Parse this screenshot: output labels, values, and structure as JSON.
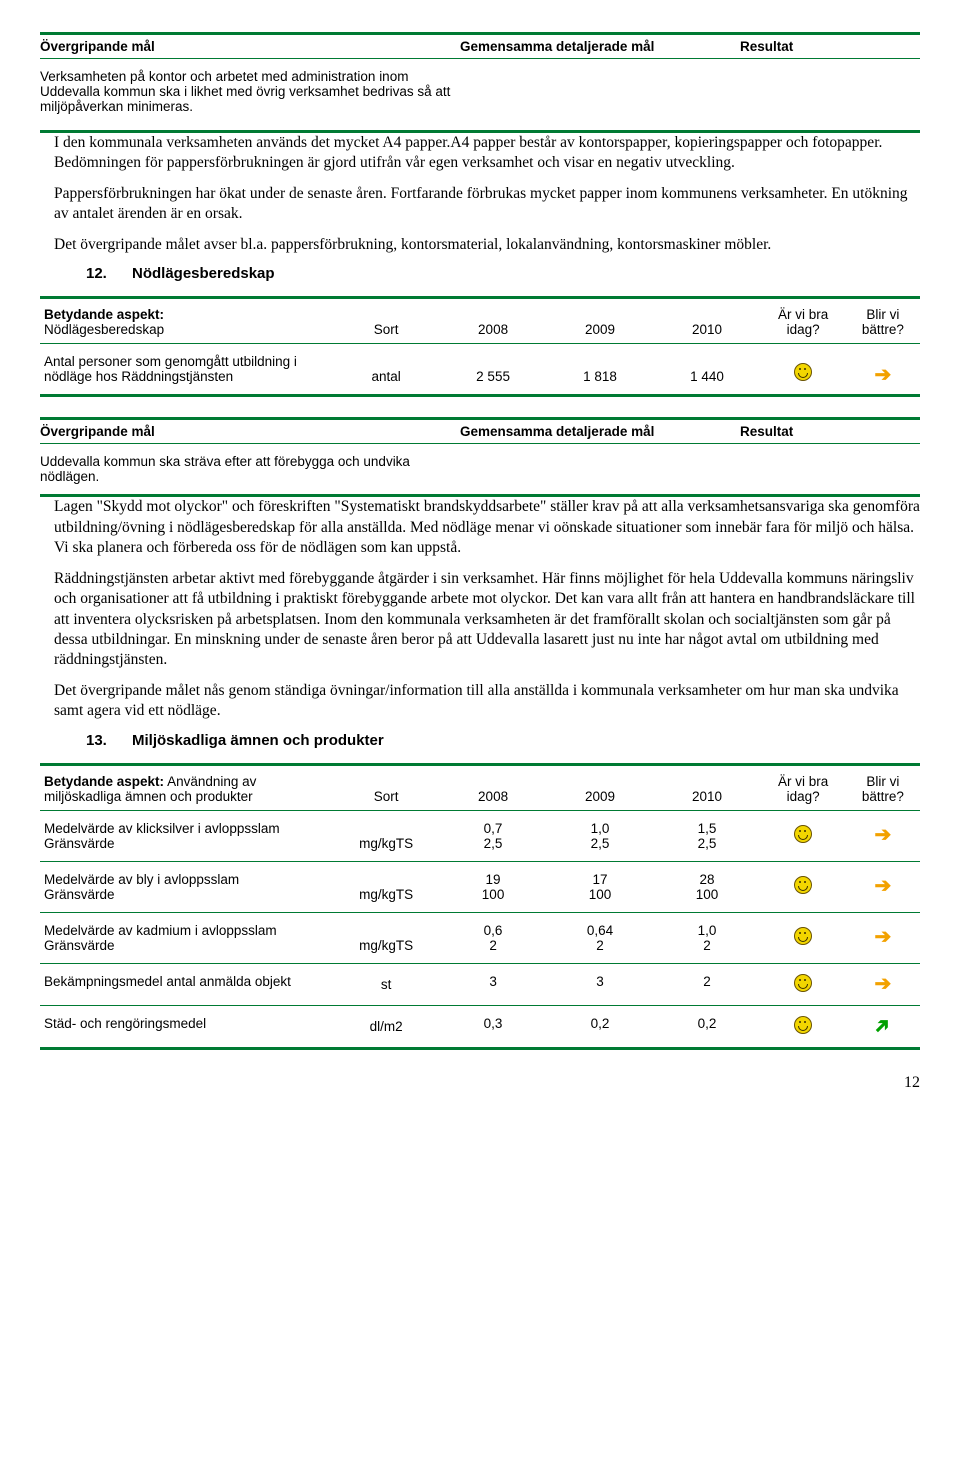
{
  "header1": {
    "c1": "Övergripande mål",
    "c2": "Gemensamma detaljerade mål",
    "c3": "Resultat"
  },
  "goal1": "Verksamheten på kontor och arbetet med administration inom Uddevalla kommun ska i likhet med övrig verksamhet bedrivas så att miljöpåverkan minimeras.",
  "p1": "I den kommunala verksamheten används det mycket A4 papper.A4 papper består av kontorspapper, kopieringspapper och fotopapper. Bedömningen för pappersförbrukningen är gjord utifrån vår egen verksamhet och visar en negativ utveckling.",
  "p2": "Pappersförbrukningen har ökat under de senaste åren. Fortfarande förbrukas mycket papper inom kommunens verksamheter. En utökning av antalet ärenden är en orsak.",
  "p3": "Det övergripande målet avser bl.a. pappersförbrukning, kontorsmaterial, lokalanvändning, kontorsmaskiner möbler.",
  "h12_num": "12.",
  "h12_title": "Nödlägesberedskap",
  "t1": {
    "aspect_label": "Betydande aspekt:",
    "aspect_val": "Nödlägesberedskap",
    "sort": "Sort",
    "y08": "2008",
    "y09": "2009",
    "y10": "2010",
    "s1a": "Är vi bra",
    "s1b": "idag?",
    "s2a": "Blir vi",
    "s2b": "bättre?",
    "row_label": "Antal personer som genomgått utbildning i nödläge hos Räddningstjänsten",
    "row_sort": "antal",
    "r08": "2 555",
    "r09": "1 818",
    "r10": "1 440"
  },
  "header2": {
    "c1": "Övergripande mål",
    "c2": "Gemensamma detaljerade mål",
    "c3": "Resultat"
  },
  "goal2": "Uddevalla kommun ska sträva efter att förebygga och undvika nödlägen.",
  "p4": "Lagen \"Skydd mot olyckor\" och föreskriften \"Systematiskt brandskyddsarbete\" ställer krav på att alla verksamhetsansvariga ska genomföra utbildning/övning i nödlägesberedskap för alla anställda. Med nödläge menar vi oönskade situationer som innebär fara för miljö och hälsa. Vi ska planera och förbereda oss för de nödlägen som kan uppstå.",
  "p5": "Räddningstjänsten arbetar aktivt med förebyggande åtgärder i sin verksamhet. Här finns möjlighet för hela Uddevalla kommuns näringsliv och organisationer att få utbildning i praktiskt förebyggande arbete mot olyckor. Det kan vara allt från att hantera en handbrandsläckare till att inventera olycksrisken på arbetsplatsen. Inom den kommunala verksamheten är det framförallt skolan och socialtjänsten som går på dessa utbildningar. En minskning under de senaste åren beror på att Uddevalla lasarett just nu inte har något avtal om utbildning med räddningstjänsten.",
  "p6": "Det övergripande målet nås genom ständiga övningar/information till alla anställda i kommunala verksamheter om hur man ska undvika samt agera vid ett nödläge.",
  "h13_num": "13.",
  "h13_title": "Miljöskadliga ämnen och produkter",
  "t2": {
    "aspect_label": "Betydande aspekt:",
    "aspect_val": "Användning av miljöskadliga ämnen och produkter",
    "sort": "Sort",
    "y08": "2008",
    "y09": "2009",
    "y10": "2010",
    "s1a": "Är vi bra",
    "s1b": "idag?",
    "s2a": "Blir vi",
    "s2b": "bättre?",
    "rows": [
      {
        "l1": "Medelvärde av klicksilver i avloppsslam",
        "l2": "Gränsvärde",
        "sort": "mg/kgTS",
        "a08": "0,7",
        "a09": "1,0",
        "a10": "1,5",
        "b08": "2,5",
        "b09": "2,5",
        "b10": "2,5",
        "trend": "right"
      },
      {
        "l1": "Medelvärde av bly i avloppsslam",
        "l2": "Gränsvärde",
        "sort": "mg/kgTS",
        "a08": "19",
        "a09": "17",
        "a10": "28",
        "b08": "100",
        "b09": "100",
        "b10": "100",
        "trend": "right"
      },
      {
        "l1": "Medelvärde av kadmium i avloppsslam",
        "l2": "Gränsvärde",
        "sort": "mg/kgTS",
        "a08": "0,6",
        "a09": "0,64",
        "a10": "1,0",
        "b08": "2",
        "b09": "2",
        "b10": "2",
        "trend": "right"
      },
      {
        "l1": "Bekämpningsmedel antal anmälda objekt",
        "l2": "",
        "sort": "st",
        "a08": "3",
        "a09": "3",
        "a10": "2",
        "b08": "",
        "b09": "",
        "b10": "",
        "trend": "right"
      },
      {
        "l1": "Städ- och rengöringsmedel",
        "l2": "",
        "sort": "dl/m2",
        "a08": "0,3",
        "a09": "0,2",
        "a10": "0,2",
        "b08": "",
        "b09": "",
        "b10": "",
        "trend": "up"
      }
    ]
  },
  "page": "12"
}
